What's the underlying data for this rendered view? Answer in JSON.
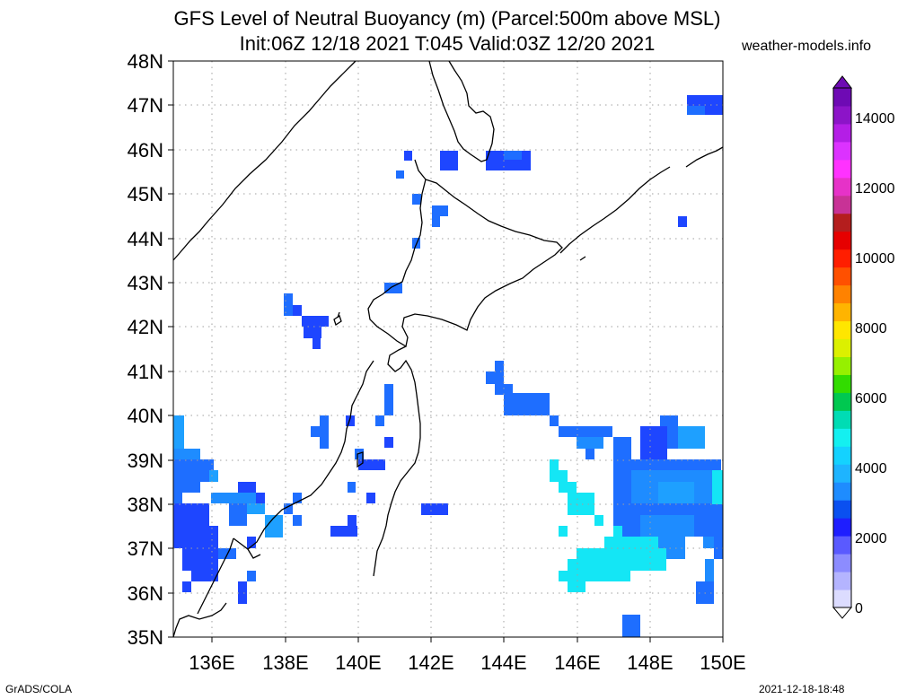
{
  "title": {
    "line1": "GFS Level of Neutral Buoyancy (m) (Parcel:500m above MSL)",
    "line2": "Init:06Z 12/18 2021 T:045 Valid:03Z 12/20 2021"
  },
  "site": "weather-models.info",
  "footer": {
    "left": "GrADS/COLA",
    "right": "2021-12-18-18:48"
  },
  "axes": {
    "lat_labels": [
      "48N",
      "47N",
      "46N",
      "45N",
      "44N",
      "43N",
      "42N",
      "41N",
      "40N",
      "39N",
      "38N",
      "37N",
      "36N",
      "35N"
    ],
    "lon_labels": [
      "136E",
      "138E",
      "140E",
      "142E",
      "144E",
      "146E",
      "148E",
      "150E"
    ],
    "lon_range": [
      135,
      150
    ],
    "lat_range": [
      35,
      48
    ]
  },
  "colorbar": {
    "labels": [
      "14000",
      "12000",
      "10000",
      "8000",
      "6000",
      "4000",
      "2000",
      "0"
    ],
    "colors": [
      "#dcdcff",
      "#b4b4ff",
      "#8c8cff",
      "#5a5aff",
      "#1e1eff",
      "#0a50f0",
      "#1e8cff",
      "#1eb4ff",
      "#14d2ff",
      "#14f0f0",
      "#00dcb4",
      "#00c850",
      "#32dc00",
      "#96f000",
      "#dcf000",
      "#ffe600",
      "#ffb400",
      "#ff8200",
      "#ff5000",
      "#ff1e00",
      "#e60000",
      "#b41e1e",
      "#c83296",
      "#e632c8",
      "#ff32ff",
      "#dc32ff",
      "#b41ee6",
      "#8c14c8",
      "#6e0ab4"
    ]
  },
  "legend_colors": {
    "blue_dark": "#1e46ff",
    "blue": "#1e6eff",
    "blue_light": "#1ea0ff",
    "cyan": "#14e6f5"
  }
}
